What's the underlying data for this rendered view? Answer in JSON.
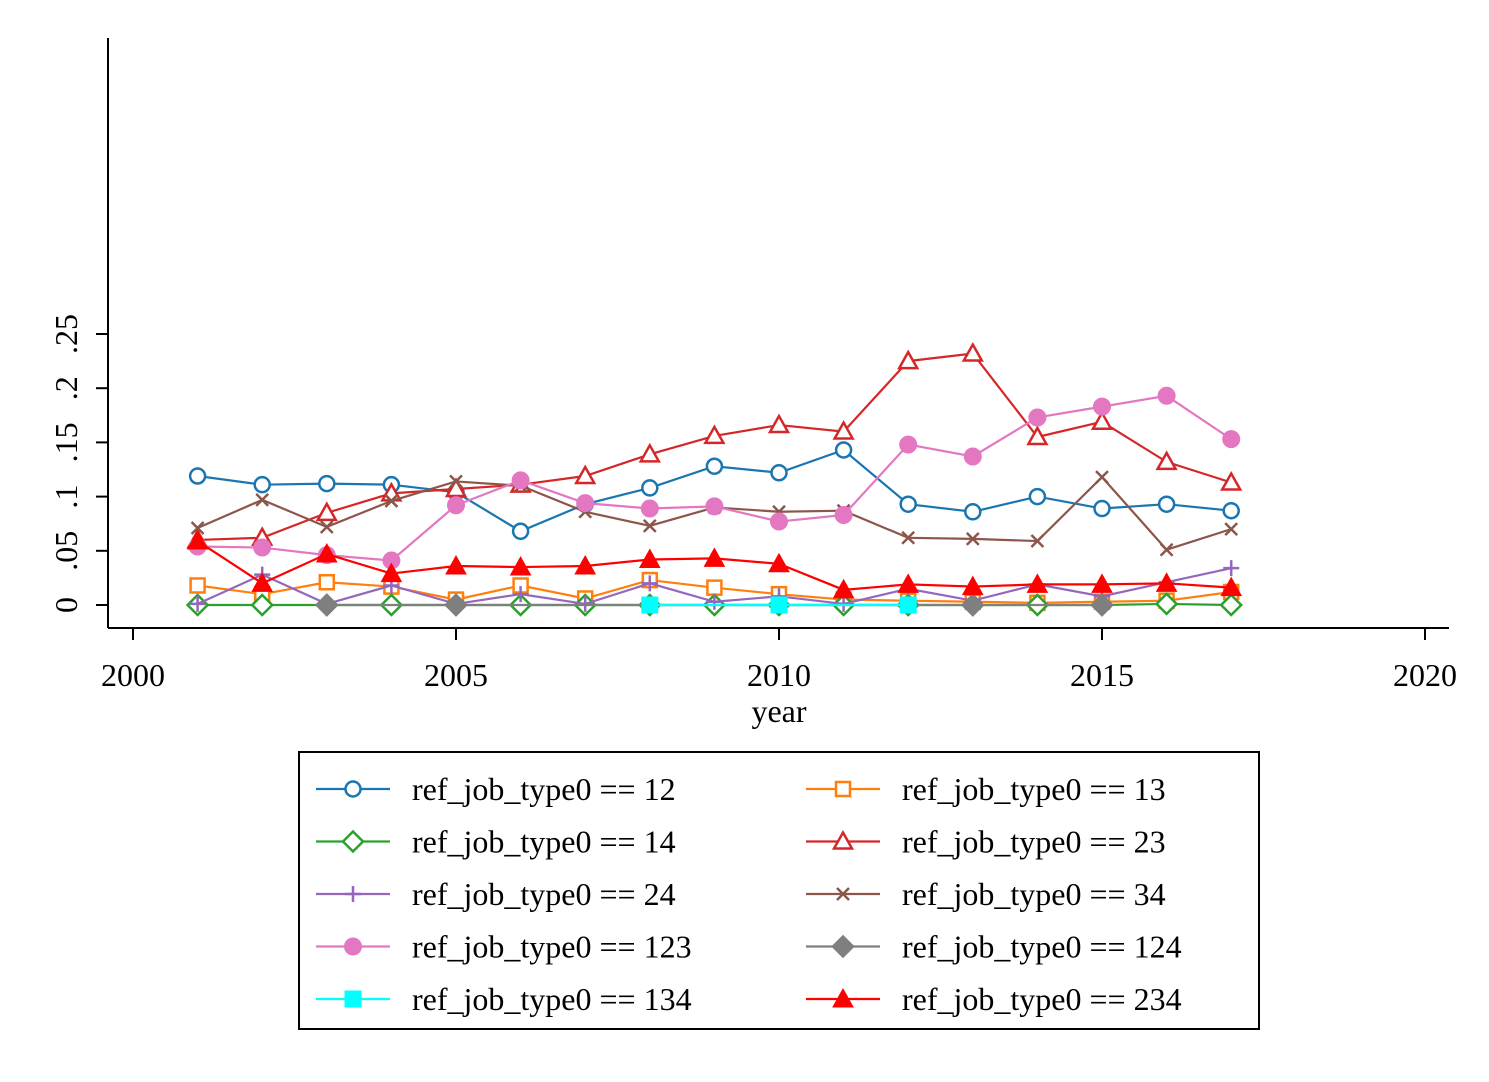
{
  "chart_data": {
    "type": "line",
    "xlabel": "year",
    "ylabel": "",
    "xlim": [
      2000,
      2020
    ],
    "ylim": [
      0,
      0.25
    ],
    "xticks": [
      "2000",
      "2005",
      "2010",
      "2015",
      "2020"
    ],
    "yticks": [
      "0",
      ".05",
      ".1",
      ".15",
      ".2",
      ".25"
    ],
    "grid": false,
    "legend_position": "bottom",
    "series": [
      {
        "name": "ref_job_type0 == 12",
        "color": "#1a76b1",
        "marker": "circle-open",
        "x": [
          2001,
          2002,
          2003,
          2004,
          2005,
          2006,
          2007,
          2008,
          2009,
          2010,
          2011,
          2012,
          2013,
          2014,
          2015,
          2016,
          2017
        ],
        "y": [
          0.119,
          0.111,
          0.112,
          0.111,
          0.104,
          0.068,
          0.093,
          0.108,
          0.128,
          0.122,
          0.143,
          0.093,
          0.086,
          0.1,
          0.089,
          0.093,
          0.087
        ]
      },
      {
        "name": "ref_job_type0 == 13",
        "color": "#ff7f0e",
        "marker": "square-open",
        "x": [
          2001,
          2002,
          2003,
          2004,
          2005,
          2006,
          2007,
          2008,
          2009,
          2010,
          2011,
          2012,
          2013,
          2014,
          2015,
          2016,
          2017
        ],
        "y": [
          0.018,
          0.01,
          0.021,
          0.017,
          0.005,
          0.018,
          0.006,
          0.023,
          0.016,
          0.01,
          0.005,
          0.004,
          0.003,
          0.002,
          0.003,
          0.004,
          0.012
        ]
      },
      {
        "name": "ref_job_type0 == 14",
        "color": "#2ca02c",
        "marker": "diamond-open",
        "x": [
          2001,
          2002,
          2003,
          2004,
          2005,
          2006,
          2007,
          2008,
          2009,
          2010,
          2011,
          2012,
          2013,
          2014,
          2015,
          2016,
          2017
        ],
        "y": [
          0,
          0,
          0,
          0,
          0,
          0,
          0,
          0,
          0,
          0,
          0,
          0,
          0,
          0,
          0,
          0.001,
          0
        ]
      },
      {
        "name": "ref_job_type0 == 23",
        "color": "#d62728",
        "marker": "triangle-open",
        "x": [
          2001,
          2002,
          2003,
          2004,
          2005,
          2006,
          2007,
          2008,
          2009,
          2010,
          2011,
          2012,
          2013,
          2014,
          2015,
          2016,
          2017
        ],
        "y": [
          0.06,
          0.062,
          0.085,
          0.103,
          0.107,
          0.111,
          0.119,
          0.139,
          0.156,
          0.166,
          0.16,
          0.225,
          0.232,
          0.155,
          0.169,
          0.132,
          0.113
        ]
      },
      {
        "name": "ref_job_type0 == 24",
        "color": "#9467bd",
        "marker": "plus",
        "x": [
          2001,
          2002,
          2003,
          2004,
          2005,
          2006,
          2007,
          2008,
          2009,
          2010,
          2011,
          2012,
          2013,
          2014,
          2015,
          2016,
          2017
        ],
        "y": [
          0.001,
          0.028,
          0.001,
          0.018,
          0.001,
          0.01,
          0.001,
          0.02,
          0.003,
          0.008,
          0.001,
          0.015,
          0.004,
          0.019,
          0.008,
          0.021,
          0.034
        ]
      },
      {
        "name": "ref_job_type0 == 34",
        "color": "#8c564b",
        "marker": "x",
        "x": [
          2001,
          2002,
          2003,
          2004,
          2005,
          2006,
          2007,
          2008,
          2009,
          2010,
          2011,
          2012,
          2013,
          2014,
          2015,
          2016,
          2017
        ],
        "y": [
          0.071,
          0.097,
          0.072,
          0.096,
          0.114,
          0.11,
          0.086,
          0.073,
          0.09,
          0.086,
          0.087,
          0.062,
          0.061,
          0.059,
          0.118,
          0.051,
          0.07
        ]
      },
      {
        "name": "ref_job_type0 == 123",
        "color": "#e377c2",
        "marker": "circle-filled",
        "x": [
          2001,
          2002,
          2003,
          2004,
          2005,
          2006,
          2007,
          2008,
          2009,
          2010,
          2011,
          2012,
          2013,
          2014,
          2015,
          2016,
          2017
        ],
        "y": [
          0.054,
          0.053,
          0.046,
          0.041,
          0.092,
          0.115,
          0.094,
          0.089,
          0.091,
          0.077,
          0.083,
          0.148,
          0.137,
          0.173,
          0.183,
          0.193,
          0.153
        ]
      },
      {
        "name": "ref_job_type0 == 124",
        "color": "#7f7f7f",
        "marker": "diamond-filled",
        "x": [
          2003,
          2005,
          2013,
          2015
        ],
        "y": [
          0,
          0,
          0,
          0
        ]
      },
      {
        "name": "ref_job_type0 == 134",
        "color": "#00ffff",
        "marker": "square-filled",
        "x": [
          2008,
          2010,
          2012
        ],
        "y": [
          0,
          0,
          0
        ]
      },
      {
        "name": "ref_job_type0 == 234",
        "color": "#ff0000",
        "marker": "triangle-filled",
        "x": [
          2001,
          2002,
          2003,
          2004,
          2005,
          2006,
          2007,
          2008,
          2009,
          2010,
          2011,
          2012,
          2013,
          2014,
          2015,
          2016,
          2017
        ],
        "y": [
          0.059,
          0.02,
          0.047,
          0.029,
          0.036,
          0.035,
          0.036,
          0.042,
          0.043,
          0.038,
          0.014,
          0.019,
          0.017,
          0.019,
          0.019,
          0.02,
          0.016
        ]
      }
    ]
  }
}
